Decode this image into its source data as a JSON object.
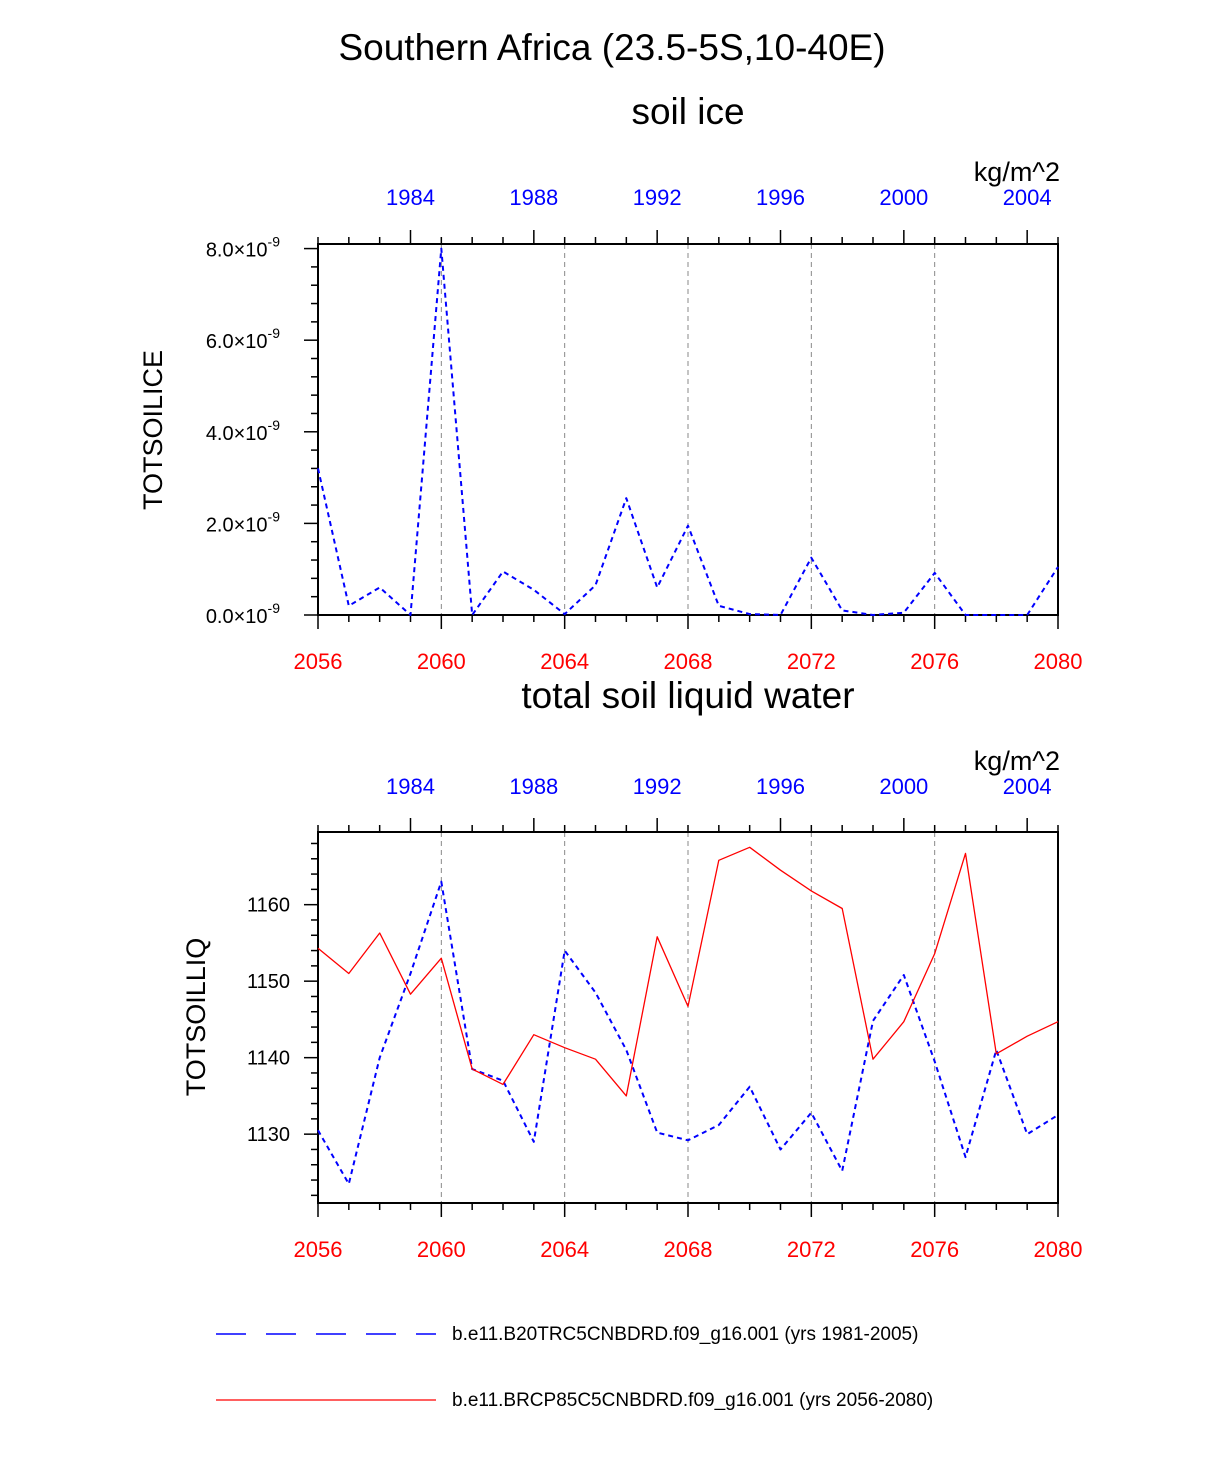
{
  "title": "Southern Africa (23.5-5S,10-40E)",
  "colors": {
    "historical": "#0000ff",
    "future": "#ff0000",
    "grid": "#888888",
    "axis": "#000000"
  },
  "legend": [
    {
      "label": "b.e11.B20TRC5CNBDRD.f09_g16.001 (yrs 1981-2005)",
      "style": "dashed",
      "color": "#0000ff"
    },
    {
      "label": "b.e11.BRCP85C5CNBDRD.f09_g16.001 (yrs 2056-2080)",
      "style": "solid",
      "color": "#ff0000"
    }
  ],
  "chart_data": [
    {
      "type": "line",
      "title": "soil ice",
      "units": "kg/m^2",
      "ylabel": "TOTSOILICE",
      "x_bottom": {
        "range": [
          2056,
          2080
        ],
        "ticks": [
          "2056",
          "2060",
          "2064",
          "2068",
          "2072",
          "2076",
          "2080"
        ],
        "color": "#ff0000"
      },
      "x_top": {
        "range": [
          1981,
          2005
        ],
        "ticks": [
          "1984",
          "1988",
          "1992",
          "1996",
          "2000",
          "2004"
        ],
        "color": "#0000ff"
      },
      "y_scale": 1e-09,
      "ylim": [
        0,
        8.1
      ],
      "y_ticks": [
        {
          "value": 0,
          "mantissa": "0.0×10",
          "exp": "-9"
        },
        {
          "value": 2,
          "mantissa": "2.0×10",
          "exp": "-9"
        },
        {
          "value": 4,
          "mantissa": "4.0×10",
          "exp": "-9"
        },
        {
          "value": 6,
          "mantissa": "6.0×10",
          "exp": "-9"
        },
        {
          "value": 8,
          "mantissa": "8.0×10",
          "exp": "-9"
        }
      ],
      "series": [
        {
          "name": "b.e11.B20TRC5CNBDRD.f09_g16.001 (yrs 1981-2005)",
          "style": "dashed",
          "color": "#0000ff",
          "values": [
            3.2,
            0.2,
            0.6,
            0.0,
            8.0,
            0.0,
            0.95,
            0.55,
            0.02,
            0.65,
            2.55,
            0.6,
            1.95,
            0.2,
            0.02,
            0.0,
            1.25,
            0.1,
            0.0,
            0.05,
            0.92,
            0.0,
            0.0,
            0.0,
            1.05
          ]
        }
      ]
    },
    {
      "type": "line",
      "title": "total soil liquid water",
      "units": "kg/m^2",
      "ylabel": "TOTSOILLIQ",
      "x_bottom": {
        "range": [
          2056,
          2080
        ],
        "ticks": [
          "2056",
          "2060",
          "2064",
          "2068",
          "2072",
          "2076",
          "2080"
        ],
        "color": "#ff0000"
      },
      "x_top": {
        "range": [
          1981,
          2005
        ],
        "ticks": [
          "1984",
          "1988",
          "1992",
          "1996",
          "2000",
          "2004"
        ],
        "color": "#0000ff"
      },
      "ylim": [
        1121,
        1169.5
      ],
      "y_ticks": [
        {
          "value": 1130,
          "label": "1130"
        },
        {
          "value": 1140,
          "label": "1140"
        },
        {
          "value": 1150,
          "label": "1150"
        },
        {
          "value": 1160,
          "label": "1160"
        }
      ],
      "series": [
        {
          "name": "b.e11.B20TRC5CNBDRD.f09_g16.001 (yrs 1981-2005)",
          "style": "dashed",
          "color": "#0000ff",
          "values": [
            1130.5,
            1123.5,
            1140,
            1151,
            1163,
            1138.5,
            1137,
            1129,
            1154,
            1148.5,
            1141,
            1130.2,
            1129.2,
            1131.2,
            1136.2,
            1128,
            1132.8,
            1125.2,
            1144.8,
            1150.8,
            1139.5,
            1127,
            1141,
            1130,
            1132.5
          ]
        },
        {
          "name": "b.e11.BRCP85C5CNBDRD.f09_g16.001 (yrs 2056-2080)",
          "style": "solid",
          "color": "#ff0000",
          "values": [
            1154.3,
            1151,
            1156.3,
            1148.3,
            1153,
            1138.5,
            1136.5,
            1143,
            1141.3,
            1139.8,
            1135,
            1155.8,
            1146.7,
            1165.8,
            1167.5,
            1164.5,
            1161.8,
            1159.5,
            1139.8,
            1144.7,
            1153.6,
            1166.7,
            1140.5,
            1142.8,
            1144.7
          ]
        }
      ]
    }
  ]
}
